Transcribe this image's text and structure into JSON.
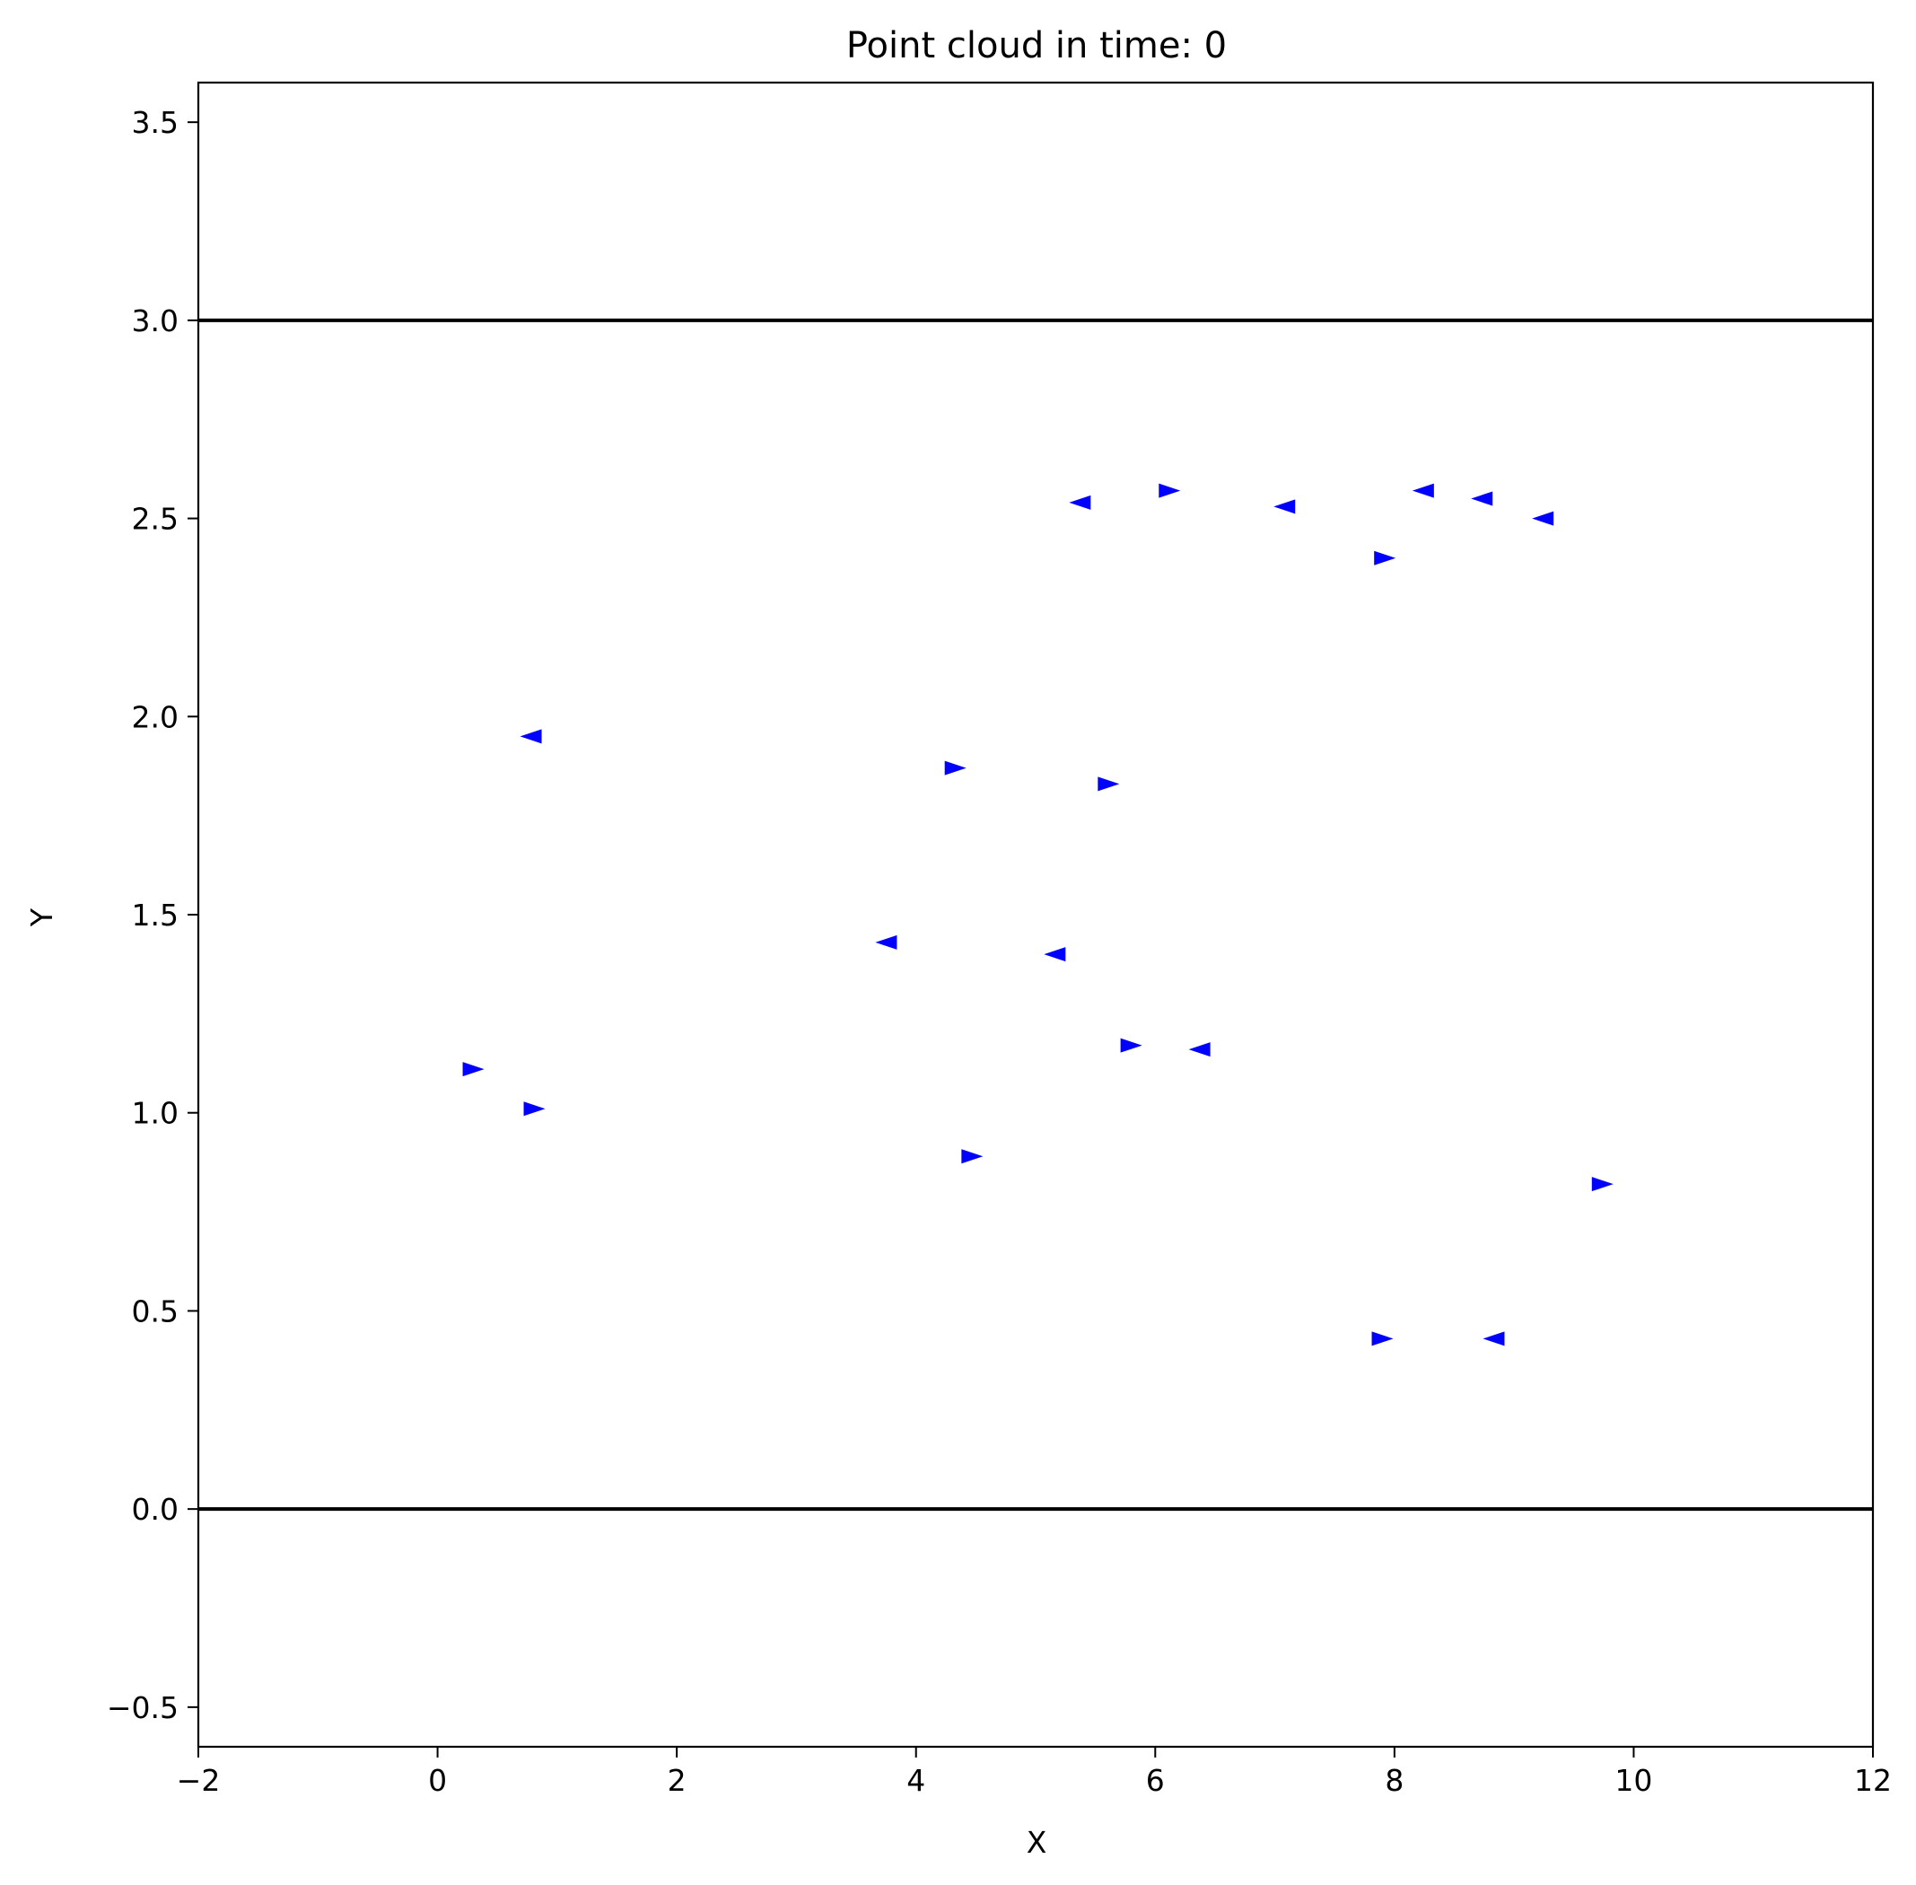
{
  "chart_data": {
    "type": "scatter",
    "title": "Point cloud in time: 0",
    "xlabel": "X",
    "ylabel": "Y",
    "xlim": [
      -2,
      12
    ],
    "ylim": [
      -0.6,
      3.6
    ],
    "x_ticks": [
      -2,
      0,
      2,
      4,
      6,
      8,
      10,
      12
    ],
    "x_tick_labels": [
      "−2",
      "0",
      "2",
      "4",
      "6",
      "8",
      "10",
      "12"
    ],
    "y_ticks": [
      -0.5,
      0.0,
      0.5,
      1.0,
      1.5,
      2.0,
      2.5,
      3.0,
      3.5
    ],
    "y_tick_labels": [
      "−0.5",
      "0.0",
      "0.5",
      "1.0",
      "1.5",
      "2.0",
      "2.5",
      "3.0",
      "3.5"
    ],
    "grid": false,
    "marker_color": "#0000ff",
    "boundary_color": "#000000",
    "boundaries_y": [
      0.0,
      3.0
    ],
    "points": [
      {
        "x": 5.37,
        "y": 2.54,
        "direction": "left"
      },
      {
        "x": 6.12,
        "y": 2.57,
        "direction": "right"
      },
      {
        "x": 7.08,
        "y": 2.53,
        "direction": "left"
      },
      {
        "x": 8.24,
        "y": 2.57,
        "direction": "left"
      },
      {
        "x": 8.73,
        "y": 2.55,
        "direction": "left"
      },
      {
        "x": 9.24,
        "y": 2.5,
        "direction": "left"
      },
      {
        "x": 7.92,
        "y": 2.4,
        "direction": "right"
      },
      {
        "x": 0.78,
        "y": 1.95,
        "direction": "left"
      },
      {
        "x": 4.33,
        "y": 1.87,
        "direction": "right"
      },
      {
        "x": 5.61,
        "y": 1.83,
        "direction": "right"
      },
      {
        "x": 3.75,
        "y": 1.43,
        "direction": "left"
      },
      {
        "x": 5.16,
        "y": 1.4,
        "direction": "left"
      },
      {
        "x": 5.8,
        "y": 1.17,
        "direction": "right"
      },
      {
        "x": 6.37,
        "y": 1.16,
        "direction": "left"
      },
      {
        "x": 0.3,
        "y": 1.11,
        "direction": "right"
      },
      {
        "x": 0.81,
        "y": 1.01,
        "direction": "right"
      },
      {
        "x": 4.47,
        "y": 0.89,
        "direction": "right"
      },
      {
        "x": 9.74,
        "y": 0.82,
        "direction": "right"
      },
      {
        "x": 7.9,
        "y": 0.43,
        "direction": "right"
      },
      {
        "x": 8.83,
        "y": 0.43,
        "direction": "left"
      }
    ]
  }
}
